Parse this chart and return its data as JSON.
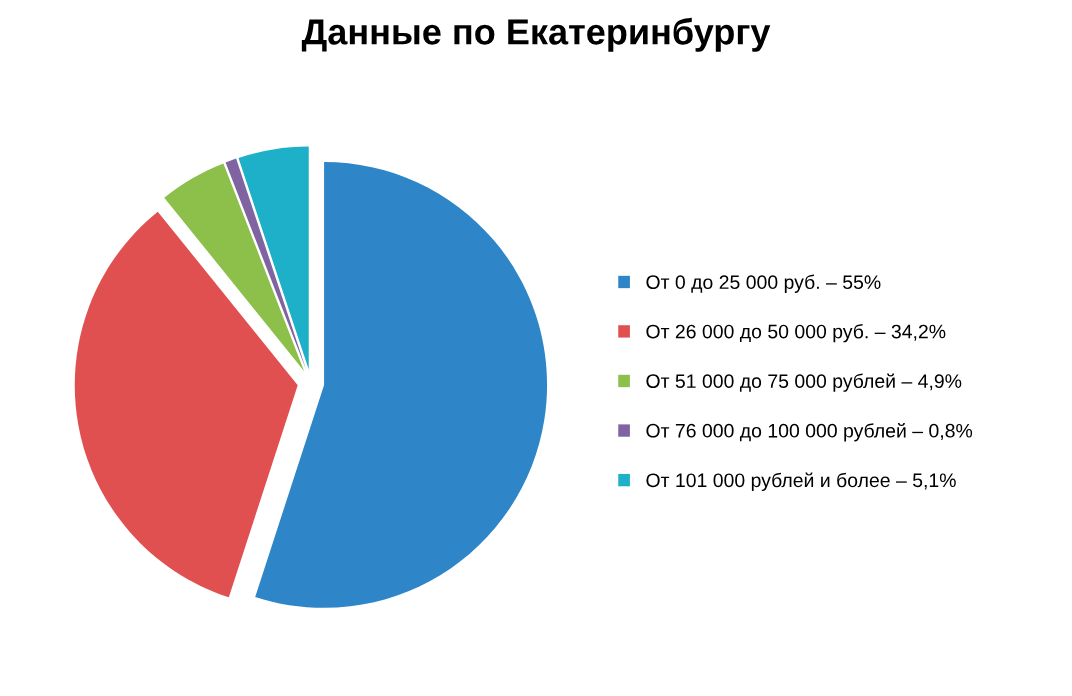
{
  "chart_data": {
    "type": "pie",
    "title": "Данные по Екатеринбургу",
    "categories": [
      "От 0 до 25 000 руб. – 55%",
      "От 26 000 до 50 000 руб. – 34,2%",
      "От 51 000 до 75 000 рублей – 4,9%",
      "От 76 000 до 100 000 рублей – 0,8%",
      "От 101 000 рублей и более – 5,1%"
    ],
    "values": [
      55,
      34.2,
      4.9,
      0.8,
      5.1
    ],
    "colors": [
      "#2e86c8",
      "#e05050",
      "#8dc04a",
      "#8064a2",
      "#1eb0c8"
    ],
    "legend": "right"
  }
}
